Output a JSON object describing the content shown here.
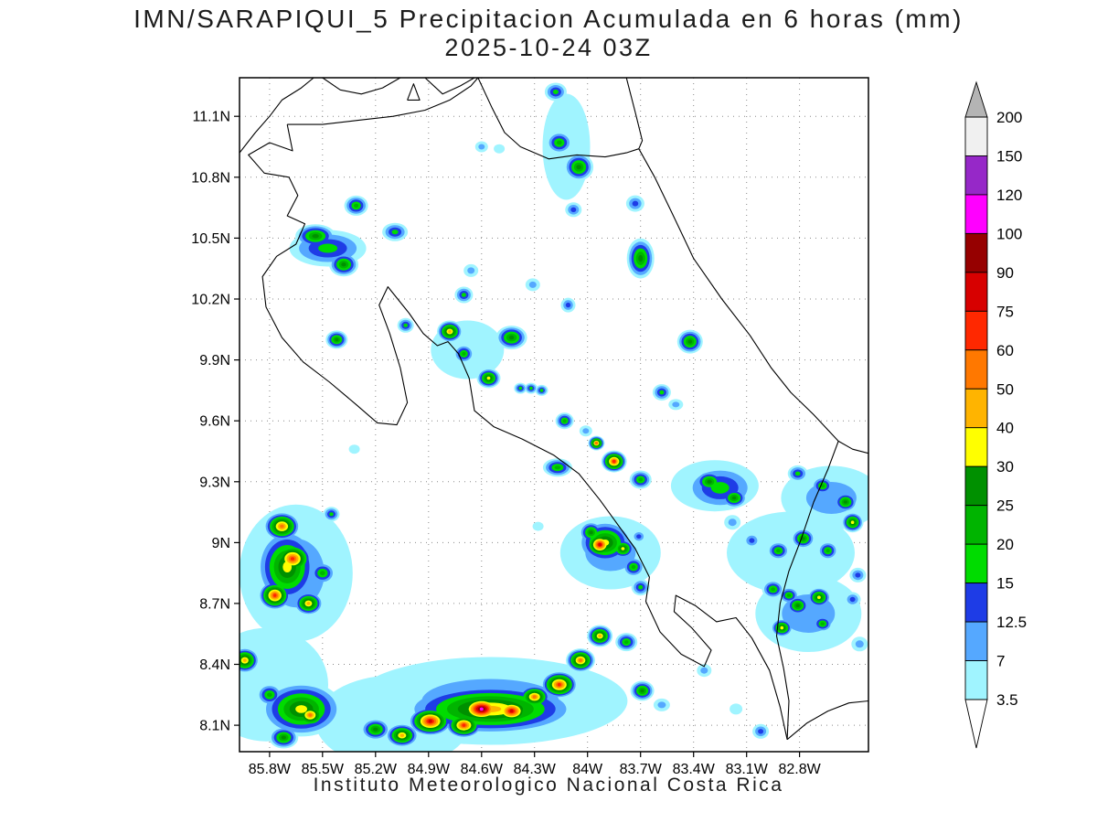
{
  "title": {
    "line1": "IMN/SARAPIQUI_5 Precipitacion Acumulada en 6 horas (mm)",
    "line2": "2025-10-24 03Z"
  },
  "footer": "Instituto Meteorologico Nacional Costa Rica",
  "chart_data": {
    "type": "heatmap",
    "title": "IMN/SARAPIQUI_5 Precipitacion Acumulada en 6 horas (mm)",
    "subtitle": "2025-10-24 03Z",
    "units": "mm",
    "grid": true,
    "lon_range": [
      -85.97,
      -82.41
    ],
    "lat_range": [
      7.97,
      11.29
    ],
    "x_ticks": [
      "85.8W",
      "85.5W",
      "85.2W",
      "84.9W",
      "84.6W",
      "84.3W",
      "84W",
      "83.7W",
      "83.4W",
      "83.1W",
      "82.8W"
    ],
    "x_tick_lons": [
      -85.8,
      -85.5,
      -85.2,
      -84.9,
      -84.6,
      -84.3,
      -84.0,
      -83.7,
      -83.4,
      -83.1,
      -82.8
    ],
    "y_ticks": [
      "11.1N",
      "10.8N",
      "10.5N",
      "10.2N",
      "9.9N",
      "9.6N",
      "9.3N",
      "9N",
      "8.7N",
      "8.4N",
      "8.1N"
    ],
    "y_tick_lats": [
      11.1,
      10.8,
      10.5,
      10.2,
      9.9,
      9.6,
      9.3,
      9.0,
      8.7,
      8.4,
      8.1
    ],
    "colorbar": {
      "levels": [
        3.5,
        7,
        12.5,
        15,
        20,
        25,
        30,
        40,
        50,
        60,
        75,
        90,
        100,
        120,
        150,
        200
      ],
      "colors": [
        "#a0f4ff",
        "#55a8ff",
        "#1e3ce6",
        "#00dc00",
        "#00b400",
        "#009000",
        "#ffff00",
        "#ffb400",
        "#ff7800",
        "#ff2800",
        "#d70000",
        "#960000",
        "#ff00ff",
        "#9628c8",
        "#f0f0f0"
      ],
      "over_color": "#b4b4b4",
      "under_color": "#ffffff"
    },
    "cell_format": [
      "lon",
      "lat",
      "max_mm",
      "rx_px",
      "ry_px"
    ],
    "cells": [
      [
        -84.55,
        8.22,
        7,
        150,
        48
      ],
      [
        -85.1,
        8.12,
        3.5,
        85,
        50
      ],
      [
        -85.65,
        8.85,
        7,
        62,
        75
      ],
      [
        -85.82,
        8.3,
        3.5,
        68,
        62
      ],
      [
        -83.87,
        8.95,
        7,
        55,
        40
      ],
      [
        -82.85,
        8.95,
        3.5,
        70,
        45
      ],
      [
        -82.75,
        8.65,
        7,
        58,
        42
      ],
      [
        -83.28,
        9.28,
        3.5,
        48,
        28
      ],
      [
        -84.68,
        9.95,
        3.5,
        40,
        32
      ],
      [
        -82.62,
        9.22,
        7,
        55,
        35
      ],
      [
        -84.12,
        10.95,
        3.5,
        26,
        58
      ],
      [
        -84.55,
        8.18,
        40,
        95,
        28
      ],
      [
        -85.7,
        8.88,
        30,
        34,
        42
      ],
      [
        -85.62,
        8.18,
        30,
        45,
        30
      ],
      [
        -83.9,
        9.0,
        30,
        30,
        24
      ],
      [
        -83.25,
        9.27,
        15,
        40,
        25
      ],
      [
        -85.47,
        10.45,
        15,
        42,
        20
      ],
      [
        -84.18,
        11.22,
        15,
        12,
        10
      ],
      [
        -84.16,
        10.97,
        20,
        14,
        12
      ],
      [
        -84.05,
        10.85,
        25,
        16,
        15
      ],
      [
        -84.08,
        10.64,
        12.5,
        9,
        8
      ],
      [
        -83.73,
        10.67,
        12.5,
        10,
        9
      ],
      [
        -84.6,
        10.95,
        7,
        7,
        6
      ],
      [
        -84.5,
        10.94,
        3.5,
        6,
        5
      ],
      [
        -85.31,
        10.66,
        20,
        13,
        11
      ],
      [
        -85.54,
        10.51,
        25,
        22,
        13
      ],
      [
        -85.38,
        10.37,
        25,
        16,
        13
      ],
      [
        -85.09,
        10.53,
        15,
        14,
        10
      ],
      [
        -84.66,
        10.34,
        7,
        8,
        7
      ],
      [
        -84.7,
        10.22,
        15,
        10,
        9
      ],
      [
        -84.31,
        10.27,
        7,
        8,
        7
      ],
      [
        -84.11,
        10.17,
        12.5,
        8,
        8
      ],
      [
        -83.7,
        10.4,
        25,
        15,
        22
      ],
      [
        -85.03,
        10.07,
        15,
        9,
        8
      ],
      [
        -84.78,
        10.04,
        40,
        14,
        12
      ],
      [
        -84.7,
        9.93,
        20,
        11,
        10
      ],
      [
        -84.56,
        9.81,
        30,
        13,
        11
      ],
      [
        -85.42,
        10.0,
        25,
        12,
        10
      ],
      [
        -84.43,
        10.01,
        25,
        17,
        13
      ],
      [
        -83.42,
        9.99,
        25,
        14,
        13
      ],
      [
        -83.58,
        9.74,
        15,
        10,
        9
      ],
      [
        -83.5,
        9.68,
        7,
        8,
        6
      ],
      [
        -84.38,
        9.76,
        15,
        7,
        6
      ],
      [
        -84.32,
        9.76,
        15,
        7,
        6
      ],
      [
        -84.26,
        9.75,
        15,
        7,
        6
      ],
      [
        -84.13,
        9.6,
        20,
        10,
        9
      ],
      [
        -84.01,
        9.55,
        7,
        7,
        6
      ],
      [
        -83.95,
        9.49,
        50,
        9,
        8
      ],
      [
        -85.32,
        9.46,
        3.5,
        6,
        5
      ],
      [
        -84.17,
        9.37,
        20,
        16,
        10
      ],
      [
        -83.85,
        9.4,
        60,
        14,
        12
      ],
      [
        -83.7,
        9.31,
        20,
        12,
        10
      ],
      [
        -83.31,
        9.3,
        25,
        16,
        12
      ],
      [
        -83.17,
        9.22,
        25,
        14,
        11
      ],
      [
        -82.81,
        9.34,
        15,
        11,
        9
      ],
      [
        -82.67,
        9.28,
        20,
        12,
        10
      ],
      [
        -82.54,
        9.2,
        25,
        13,
        11
      ],
      [
        -82.5,
        9.1,
        30,
        12,
        11
      ],
      [
        -84.28,
        9.08,
        3.5,
        6,
        5
      ],
      [
        -83.98,
        9.05,
        25,
        13,
        12
      ],
      [
        -83.93,
        8.99,
        75,
        16,
        14
      ],
      [
        -83.8,
        8.97,
        30,
        13,
        11
      ],
      [
        -83.71,
        9.03,
        12.5,
        8,
        7
      ],
      [
        -83.74,
        8.88,
        20,
        12,
        11
      ],
      [
        -83.7,
        8.78,
        15,
        10,
        9
      ],
      [
        -83.18,
        9.1,
        7,
        9,
        8
      ],
      [
        -83.07,
        9.01,
        12.5,
        9,
        8
      ],
      [
        -82.92,
        8.96,
        20,
        12,
        10
      ],
      [
        -82.78,
        9.02,
        25,
        13,
        11
      ],
      [
        -82.64,
        8.96,
        20,
        11,
        10
      ],
      [
        -82.47,
        8.84,
        12.5,
        9,
        8
      ],
      [
        -82.69,
        8.73,
        30,
        13,
        11
      ],
      [
        -82.86,
        8.74,
        20,
        11,
        9
      ],
      [
        -85.73,
        9.08,
        50,
        20,
        16
      ],
      [
        -85.67,
        8.92,
        60,
        22,
        18
      ],
      [
        -85.77,
        8.74,
        60,
        18,
        16
      ],
      [
        -85.58,
        8.7,
        40,
        16,
        13
      ],
      [
        -85.45,
        9.14,
        15,
        9,
        8
      ],
      [
        -85.5,
        8.85,
        20,
        14,
        12
      ],
      [
        -85.94,
        8.42,
        40,
        16,
        14
      ],
      [
        -85.57,
        8.15,
        50,
        18,
        14
      ],
      [
        -85.72,
        8.04,
        25,
        16,
        12
      ],
      [
        -85.8,
        8.25,
        20,
        14,
        12
      ],
      [
        -84.89,
        8.12,
        75,
        24,
        16
      ],
      [
        -84.6,
        8.18,
        100,
        26,
        16
      ],
      [
        -84.43,
        8.17,
        75,
        22,
        15
      ],
      [
        -84.16,
        8.3,
        60,
        20,
        15
      ],
      [
        -84.04,
        8.42,
        50,
        16,
        13
      ],
      [
        -84.7,
        8.1,
        60,
        20,
        14
      ],
      [
        -85.05,
        8.05,
        40,
        18,
        13
      ],
      [
        -85.2,
        8.08,
        25,
        16,
        12
      ],
      [
        -83.93,
        8.54,
        40,
        14,
        12
      ],
      [
        -83.78,
        8.51,
        20,
        12,
        10
      ],
      [
        -84.3,
        8.24,
        50,
        18,
        13
      ],
      [
        -83.69,
        8.27,
        25,
        13,
        11
      ],
      [
        -83.58,
        8.2,
        7,
        9,
        7
      ],
      [
        -83.34,
        8.37,
        7,
        8,
        7
      ],
      [
        -83.16,
        8.18,
        3.5,
        7,
        6
      ],
      [
        -83.02,
        8.07,
        12.5,
        9,
        8
      ],
      [
        -82.95,
        8.77,
        20,
        12,
        10
      ],
      [
        -82.81,
        8.69,
        25,
        13,
        11
      ],
      [
        -82.9,
        8.58,
        30,
        12,
        10
      ],
      [
        -82.67,
        8.6,
        20,
        11,
        9
      ],
      [
        -82.5,
        8.72,
        12.5,
        9,
        8
      ],
      [
        -82.46,
        8.5,
        7,
        9,
        8
      ]
    ],
    "coastlines": [
      [
        [
          -85.97,
          10.92
        ],
        [
          -85.88,
          11.02
        ],
        [
          -85.8,
          11.1
        ],
        [
          -85.73,
          11.18
        ],
        [
          -85.62,
          11.24
        ],
        [
          -85.55,
          11.29
        ]
      ],
      [
        [
          -85.5,
          11.29
        ],
        [
          -85.4,
          11.23
        ],
        [
          -85.28,
          11.21
        ],
        [
          -85.16,
          11.24
        ],
        [
          -85.06,
          11.29
        ]
      ],
      [
        [
          -84.92,
          11.29
        ],
        [
          -84.82,
          11.21
        ],
        [
          -84.72,
          11.25
        ],
        [
          -84.64,
          11.29
        ]
      ],
      [
        [
          -84.62,
          11.29
        ],
        [
          -84.54,
          11.14
        ],
        [
          -84.47,
          11.02
        ],
        [
          -84.38,
          10.95
        ],
        [
          -84.22,
          10.89
        ],
        [
          -84.06,
          10.91
        ],
        [
          -83.9,
          10.9
        ],
        [
          -83.78,
          10.92
        ],
        [
          -83.71,
          10.94
        ]
      ],
      [
        [
          -85.7,
          11.06
        ],
        [
          -85.5,
          11.06
        ],
        [
          -85.3,
          11.08
        ],
        [
          -85.1,
          11.1
        ],
        [
          -84.92,
          11.13
        ],
        [
          -84.78,
          11.18
        ],
        [
          -84.66,
          11.25
        ],
        [
          -84.62,
          11.29
        ]
      ],
      [
        [
          -83.78,
          11.29
        ],
        [
          -83.73,
          11.12
        ],
        [
          -83.69,
          10.98
        ],
        [
          -83.71,
          10.94
        ],
        [
          -83.62,
          10.8
        ],
        [
          -83.52,
          10.62
        ],
        [
          -83.4,
          10.4
        ],
        [
          -83.24,
          10.2
        ],
        [
          -83.08,
          10.02
        ],
        [
          -82.96,
          9.86
        ],
        [
          -82.85,
          9.74
        ],
        [
          -82.72,
          9.63
        ],
        [
          -82.58,
          9.5
        ],
        [
          -82.5,
          9.46
        ],
        [
          -82.41,
          9.44
        ]
      ],
      [
        [
          -82.58,
          9.5
        ],
        [
          -82.64,
          9.36
        ],
        [
          -82.72,
          9.2
        ],
        [
          -82.79,
          9.02
        ],
        [
          -82.86,
          8.86
        ],
        [
          -82.91,
          8.7
        ],
        [
          -82.93,
          8.54
        ],
        [
          -82.89,
          8.38
        ],
        [
          -82.86,
          8.22
        ],
        [
          -82.87,
          8.03
        ]
      ],
      [
        [
          -82.87,
          8.03
        ],
        [
          -82.76,
          8.11
        ],
        [
          -82.64,
          8.17
        ],
        [
          -82.52,
          8.21
        ],
        [
          -82.41,
          8.22
        ]
      ],
      [
        [
          -85.7,
          11.06
        ],
        [
          -85.67,
          10.93
        ],
        [
          -85.8,
          10.97
        ],
        [
          -85.92,
          10.91
        ],
        [
          -85.83,
          10.82
        ],
        [
          -85.69,
          10.8
        ],
        [
          -85.64,
          10.71
        ],
        [
          -85.7,
          10.61
        ],
        [
          -85.6,
          10.57
        ],
        [
          -85.65,
          10.47
        ],
        [
          -85.76,
          10.41
        ],
        [
          -85.84,
          10.31
        ],
        [
          -85.82,
          10.16
        ],
        [
          -85.73,
          10.01
        ],
        [
          -85.61,
          9.89
        ],
        [
          -85.46,
          9.79
        ],
        [
          -85.31,
          9.68
        ],
        [
          -85.19,
          9.59
        ],
        [
          -85.08,
          9.58
        ],
        [
          -85.02,
          9.69
        ],
        [
          -85.06,
          9.86
        ],
        [
          -85.12,
          10.03
        ],
        [
          -85.18,
          10.17
        ],
        [
          -85.13,
          10.26
        ],
        [
          -85.01,
          10.13
        ],
        [
          -84.93,
          10.03
        ],
        [
          -84.85,
          9.97
        ],
        [
          -84.79,
          9.99
        ],
        [
          -84.73,
          9.93
        ],
        [
          -84.67,
          9.81
        ],
        [
          -84.64,
          9.65
        ],
        [
          -84.53,
          9.57
        ],
        [
          -84.37,
          9.51
        ],
        [
          -84.19,
          9.43
        ],
        [
          -84.05,
          9.34
        ],
        [
          -83.93,
          9.21
        ],
        [
          -83.83,
          9.09
        ],
        [
          -83.73,
          8.97
        ],
        [
          -83.65,
          8.83
        ],
        [
          -83.67,
          8.71
        ],
        [
          -83.59,
          8.56
        ],
        [
          -83.47,
          8.45
        ],
        [
          -83.34,
          8.39
        ],
        [
          -83.3,
          8.47
        ],
        [
          -83.41,
          8.58
        ],
        [
          -83.51,
          8.66
        ],
        [
          -83.5,
          8.74
        ],
        [
          -83.39,
          8.69
        ],
        [
          -83.27,
          8.61
        ],
        [
          -83.16,
          8.63
        ],
        [
          -83.07,
          8.53
        ],
        [
          -82.97,
          8.37
        ],
        [
          -82.91,
          8.19
        ],
        [
          -82.87,
          8.03
        ]
      ],
      [
        [
          -85.02,
          11.18
        ],
        [
          -84.985,
          11.26
        ],
        [
          -84.95,
          11.18
        ],
        [
          -85.02,
          11.18
        ]
      ]
    ]
  }
}
